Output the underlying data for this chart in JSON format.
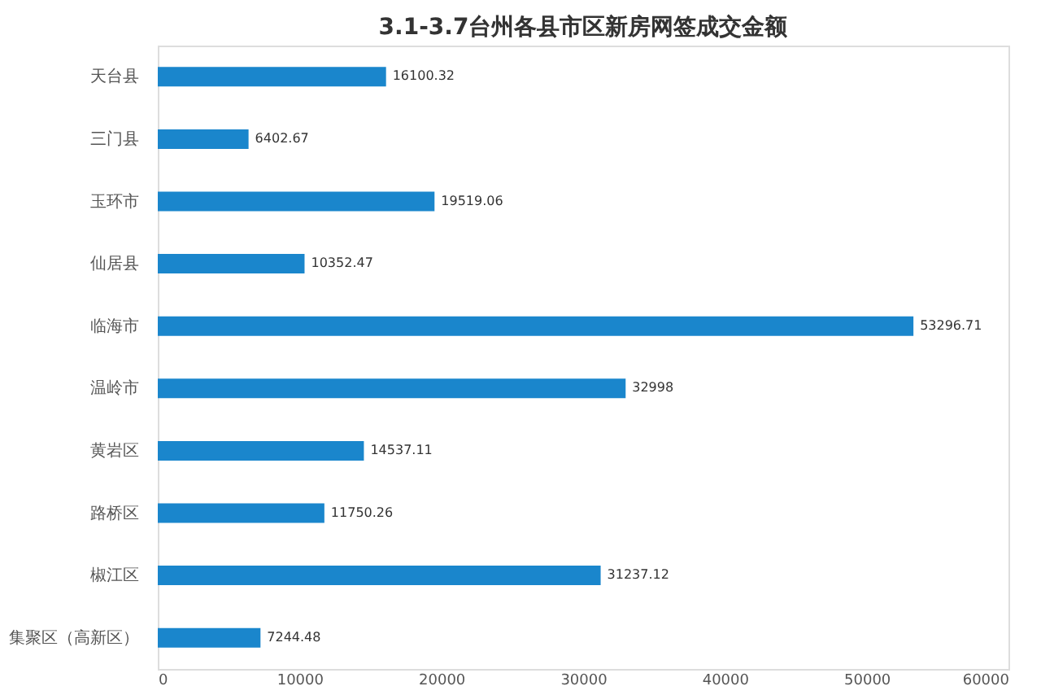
{
  "chart_data": {
    "type": "bar",
    "orientation": "horizontal",
    "title": "3.1-3.7台州各县市区新房网签成交金额",
    "categories": [
      "天台县",
      "三门县",
      "玉环市",
      "仙居县",
      "临海市",
      "温岭市",
      "黄岩区",
      "路桥区",
      "椒江区",
      "集聚区（高新区）"
    ],
    "values": [
      16100.32,
      6402.67,
      19519.06,
      10352.47,
      53296.71,
      32998,
      14537.11,
      11750.26,
      31237.12,
      7244.48
    ],
    "color": "#1a86cc",
    "xlim": [
      0,
      60000
    ],
    "xticks": [
      0,
      10000,
      20000,
      30000,
      40000,
      50000,
      60000
    ],
    "grid": false,
    "data_labels": true
  }
}
